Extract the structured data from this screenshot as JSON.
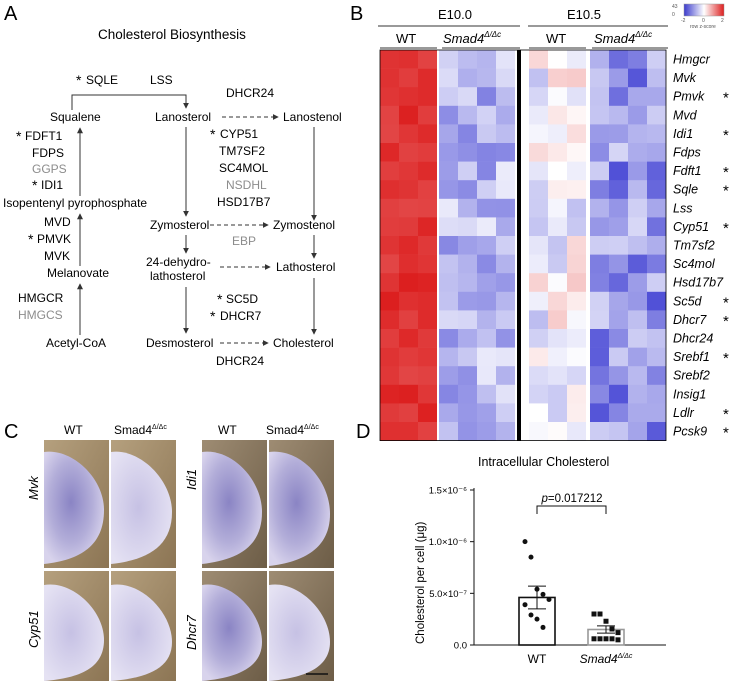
{
  "panels": {
    "A": {
      "label": "A",
      "title": "Cholesterol Biosynthesis",
      "star": "*",
      "metabolites": {
        "squalene": "Squalene",
        "lanosterol": "Lanosterol",
        "lanostenol": "Lanostenol",
        "ipp": "Isopentenyl pyrophosphate",
        "zymosterol": "Zymosterol",
        "zymostenol": "Zymostenol",
        "dehydro1": "24-dehydro-",
        "dehydro2": "lathosterol",
        "lathosterol": "Lathosterol",
        "melanovate": "Melanovate",
        "acetylcoa": "Acetyl-CoA",
        "desmosterol": "Desmosterol",
        "cholesterol": "Cholesterol"
      },
      "enzymes": {
        "sqle": "SQLE",
        "lss": "LSS",
        "dhcr24_top": "DHCR24",
        "fdft1": "FDFT1",
        "fdps": "FDPS",
        "ggps": "GGPS",
        "idi1": "IDI1",
        "cyp51": "CYP51",
        "tm7sf2": "TM7SF2",
        "sc4mol": "SC4MOL",
        "nsdhl": "NSDHL",
        "hsd17b7": "HSD17B7",
        "mvd": "MVD",
        "pmvk": "PMVK",
        "mvk": "MVK",
        "ebp": "EBP",
        "hmgcr": "HMGCR",
        "hmgcs": "HMGCS",
        "sc5d": "SC5D",
        "dhcr7": "DHCR7",
        "dhcr24_bottom": "DHCR24"
      },
      "colors": {
        "gray_enzyme": "#8c8c8c"
      }
    },
    "B": {
      "label": "B",
      "groups": [
        {
          "stage": "E10.0",
          "wt": "WT",
          "mutant_base": "Smad4",
          "mutant_sup": "Δ/Δc"
        },
        {
          "stage": "E10.5",
          "wt": "WT",
          "mutant_base": "Smad4",
          "mutant_sup": "Δ/Δc"
        }
      ],
      "colorbar": {
        "label": "row z-score",
        "ticks": [
          "-2",
          "0",
          "2"
        ],
        "count_label": "43",
        "count_zero": "0",
        "low": "#3b3bcc",
        "mid": "#ffffff",
        "high": "#dd1f1f"
      },
      "genes": [
        "Hmgcr",
        "Mvk",
        "Pmvk",
        "Mvd",
        "Idi1",
        "Fdps",
        "Fdft1",
        "Sqle",
        "Lss",
        "Cyp51",
        "Tm7sf2",
        "Sc4mol",
        "Hsd17b7",
        "Sc5d",
        "Dhcr7",
        "Dhcr24",
        "Srebf1",
        "Srebf2",
        "Insig1",
        "Ldlr",
        "Pcsk9"
      ],
      "starred": [
        "Pmvk",
        "Idi1",
        "Fdft1",
        "Sqle",
        "Cyp51",
        "Sc5d",
        "Dhcr7",
        "Srebf1",
        "Ldlr",
        "Pcsk9"
      ],
      "star": "*"
    },
    "C": {
      "label": "C",
      "wt": "WT",
      "mutant_base": "Smad4",
      "mutant_sup": "Δ/Δc",
      "genes": [
        "Mvk",
        "Idi1",
        "Cyp51",
        "Dhcr7"
      ]
    },
    "D": {
      "label": "D"
    }
  },
  "chart_data": {
    "type": "bar",
    "title": "Intracellular Cholesterol",
    "ylabel": "Cholesterol per cell (μg)",
    "categories": [
      "WT",
      "Smad4Δ/Δc"
    ],
    "category_labels": [
      {
        "base": "WT",
        "sup": ""
      },
      {
        "base": "Smad4",
        "sup": "Δ/Δc"
      }
    ],
    "values": [
      4.6e-07,
      1.5e-07
    ],
    "sem": [
      1.1e-07,
      3.5e-08
    ],
    "points": [
      [
        1e-06,
        8.5e-07,
        5.4e-07,
        4.9e-07,
        4.4e-07,
        3.9e-07,
        2.9e-07,
        2.5e-07,
        1.7e-07
      ],
      [
        3e-07,
        3e-07,
        2.3e-07,
        1.55e-07,
        1.2e-07,
        6e-08,
        6e-08,
        6e-08,
        6e-08,
        5e-08
      ]
    ],
    "ylim": [
      0,
      1.5e-06
    ],
    "yticks": [
      0,
      5e-07,
      1e-06,
      1.5e-06
    ],
    "ytick_labels": [
      "0.0",
      "5.0×10⁻⁷",
      "1.0×10⁻⁶",
      "1.5×10⁻⁶"
    ],
    "annotation": "p=0.017212",
    "colors": {
      "wt_fill": "#ffffff",
      "mut_fill": "#ffffff",
      "mut_stroke": "#999999",
      "points": "#111111"
    }
  }
}
